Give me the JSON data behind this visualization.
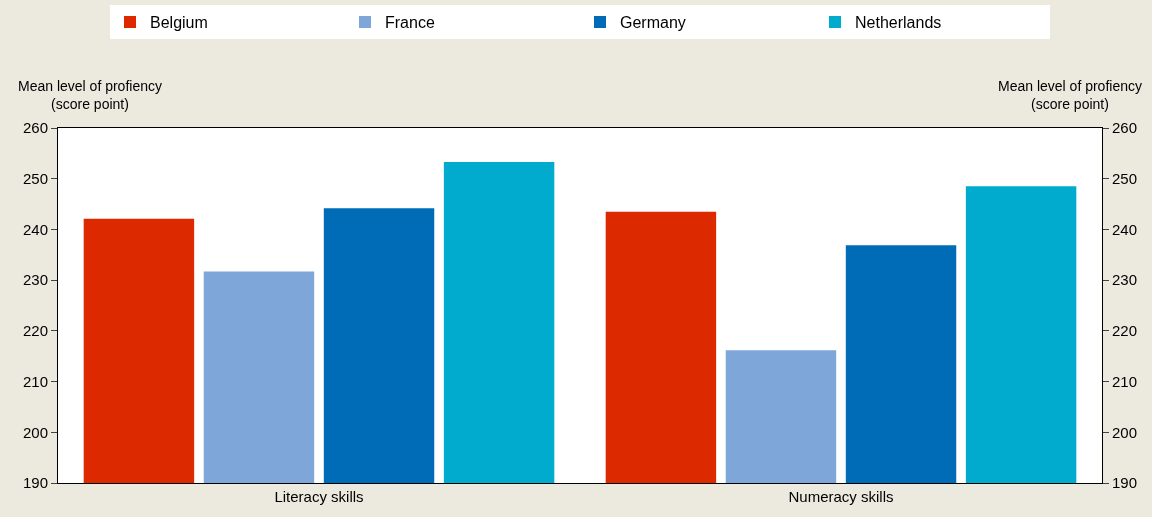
{
  "chart_data": {
    "type": "bar",
    "ylabel": "Mean level of profiency\n(score point)",
    "y2label": "Mean level of profiency\n(score point)",
    "categories": [
      "Literacy skills",
      "Numeracy skills"
    ],
    "series": [
      {
        "name": "Belgium",
        "color": "#dc2900",
        "values": [
          242.1,
          243.5
        ]
      },
      {
        "name": "France",
        "color": "#7ea6d8",
        "values": [
          231.7,
          216.2
        ]
      },
      {
        "name": "Germany",
        "color": "#006bb6",
        "values": [
          244.2,
          236.9
        ]
      },
      {
        "name": "Netherlands",
        "color": "#00abcd",
        "values": [
          253.3,
          248.5
        ]
      }
    ],
    "ylim": [
      190,
      260
    ],
    "yticks": [
      190,
      200,
      210,
      220,
      230,
      240,
      250,
      260
    ],
    "y2lim": [
      190,
      260
    ],
    "y2ticks": [
      190,
      200,
      210,
      220,
      230,
      240,
      250,
      260
    ],
    "legend": "top"
  }
}
